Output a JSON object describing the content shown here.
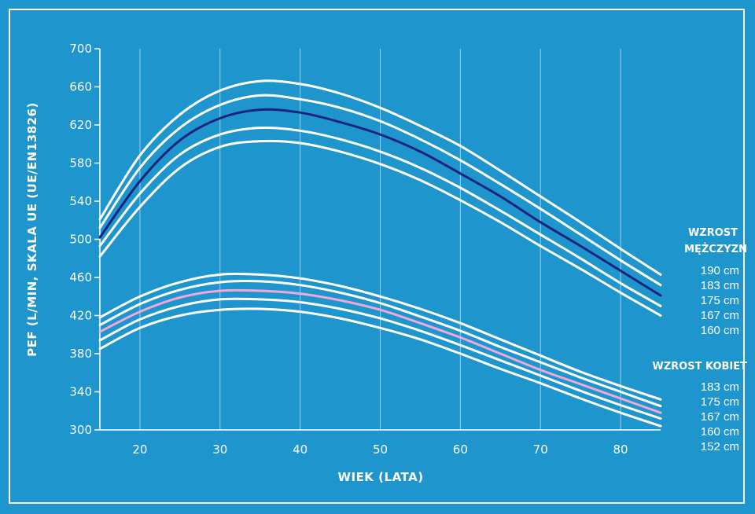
{
  "chart_data": {
    "type": "line",
    "xlabel": "WIEK (LATA)",
    "ylabel": "PEF (L/MIN, SKALA UE (UE/EN13826)",
    "xlim": [
      15,
      85
    ],
    "ylim": [
      300,
      700
    ],
    "x_ticks": [
      20,
      30,
      40,
      50,
      60,
      70,
      80
    ],
    "y_ticks": [
      300,
      340,
      380,
      420,
      460,
      500,
      540,
      580,
      620,
      660,
      700
    ],
    "grid": "vertical",
    "colors": {
      "background": "#1e96cd",
      "curve": "#ffffff",
      "men_highlight": "#1a237e",
      "women_highlight": "#f2a7d9"
    },
    "x": [
      15,
      20,
      25,
      30,
      35,
      40,
      45,
      50,
      55,
      60,
      65,
      70,
      75,
      80,
      85
    ],
    "men_series": [
      {
        "name": "190 cm",
        "values": [
          521,
          588,
          631,
          656,
          666,
          663,
          653,
          638,
          619,
          598,
          572,
          545,
          518,
          490,
          463
        ]
      },
      {
        "name": "183 cm",
        "values": [
          512,
          575,
          617,
          641,
          651,
          647,
          638,
          624,
          605,
          583,
          558,
          532,
          505,
          478,
          452
        ]
      },
      {
        "name": "175 cm",
        "values": [
          502,
          561,
          604,
          627,
          636,
          633,
          623,
          610,
          592,
          569,
          545,
          518,
          493,
          467,
          441
        ]
      },
      {
        "name": "167 cm",
        "values": [
          493,
          548,
          589,
          610,
          617,
          614,
          605,
          592,
          575,
          554,
          530,
          505,
          480,
          454,
          430
        ]
      },
      {
        "name": "160 cm",
        "values": [
          482,
          534,
          575,
          597,
          603,
          601,
          592,
          579,
          562,
          541,
          518,
          493,
          469,
          444,
          420
        ]
      }
    ],
    "women_series": [
      {
        "name": "183 cm",
        "values": [
          418,
          440,
          455,
          463,
          463,
          459,
          451,
          440,
          427,
          412,
          395,
          378,
          361,
          346,
          332
        ]
      },
      {
        "name": "175 cm",
        "values": [
          410,
          432,
          447,
          455,
          456,
          452,
          444,
          433,
          419,
          404,
          387,
          371,
          355,
          340,
          325
        ]
      },
      {
        "name": "167 cm",
        "values": [
          403,
          424,
          439,
          446,
          446,
          443,
          436,
          426,
          412,
          397,
          380,
          363,
          348,
          333,
          318
        ]
      },
      {
        "name": "160 cm",
        "values": [
          394,
          416,
          430,
          437,
          437,
          434,
          427,
          417,
          404,
          389,
          373,
          357,
          341,
          326,
          312
        ]
      },
      {
        "name": "152 cm",
        "values": [
          385,
          407,
          420,
          426,
          427,
          424,
          417,
          407,
          395,
          380,
          364,
          349,
          333,
          318,
          304
        ]
      }
    ],
    "men_highlight_index": 2,
    "women_highlight_index": 2
  },
  "legend": {
    "men_title_line1": "WZROST",
    "men_title_line2": "MĘŻCZYZN",
    "men_items": [
      "190 cm",
      "183 cm",
      "175 cm",
      "167 cm",
      "160 cm"
    ],
    "women_title": "WZROST KOBIET",
    "women_items": [
      "183 cm",
      "175 cm",
      "167 cm",
      "160 cm",
      "152 cm"
    ]
  }
}
